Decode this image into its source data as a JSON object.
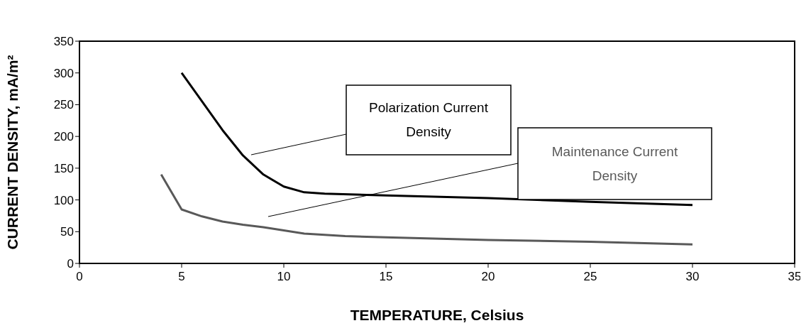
{
  "chart_data": {
    "type": "line",
    "xlabel": "TEMPERATURE, Celsius",
    "ylabel": "CURRENT DENSITY, mA/m²",
    "xlim": [
      0,
      35
    ],
    "xticks": [
      0,
      5,
      10,
      15,
      20,
      25,
      30,
      35
    ],
    "ylim": [
      0,
      350
    ],
    "yticks": [
      0,
      50,
      100,
      150,
      200,
      250,
      300,
      350
    ],
    "legend": false,
    "marker": "none",
    "line_style": "solid",
    "series": [
      {
        "name": "Polarization Current Density",
        "color": "#000000",
        "x": [
          5,
          6,
          7,
          8,
          9,
          10,
          11,
          12,
          15,
          20,
          25,
          30
        ],
        "values": [
          300,
          255,
          210,
          170,
          140,
          121,
          112,
          110,
          107,
          103,
          97,
          92
        ]
      },
      {
        "name": "Maintenance Current Density",
        "color": "#595959",
        "x": [
          4,
          5,
          6,
          7,
          8,
          9,
          10,
          11,
          13,
          15,
          20,
          25,
          30
        ],
        "values": [
          140,
          85,
          74,
          66,
          61,
          57,
          52,
          47,
          43,
          41,
          37,
          34,
          30
        ]
      }
    ]
  }
}
